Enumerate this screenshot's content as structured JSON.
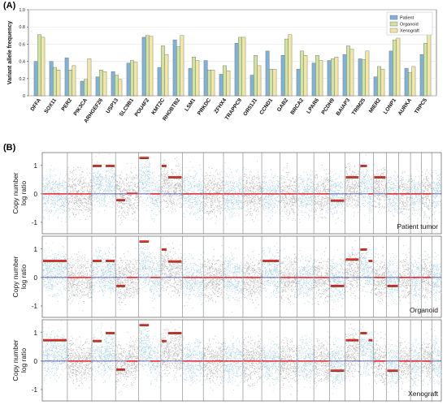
{
  "panel_labels": {
    "a": "(A)",
    "b": "(B)"
  },
  "chart_data": [
    {
      "type": "bar",
      "ylabel": "Variant allele frequency",
      "xlabel": "",
      "ylim": [
        0,
        1.0
      ],
      "yticks": [
        0,
        0.2,
        0.4,
        0.6,
        0.8,
        1.0
      ],
      "ytick_labels": [
        "0",
        "0.2",
        "0.4",
        "0.6",
        "0.8",
        "1.0"
      ],
      "legend_position": "top-right",
      "categories": [
        "DFFA",
        "SOX11",
        "PER2",
        "PIK3CA",
        "ARHGEF26",
        "USP13",
        "SLC9B1",
        "POU4F2",
        "KMT2C",
        "RHOBTB2",
        "LSM1",
        "PRKDC",
        "ZFHX4",
        "TRAPPC9",
        "OR51J1",
        "CCND1",
        "GAB2",
        "BRCA2",
        "LPAR6",
        "PCDH9",
        "BAIAP3",
        "TRIM25",
        "MIER2",
        "LONP1",
        "AURKA",
        "TRPC5"
      ],
      "series": [
        {
          "name": "Patient",
          "color": "#7fb2d9",
          "values": [
            0.4,
            0.4,
            0.44,
            0.17,
            0.22,
            0.28,
            0.38,
            0.68,
            0.33,
            0.65,
            0.32,
            0.41,
            0.25,
            0.61,
            0.24,
            0.52,
            0.47,
            0.31,
            0.38,
            0.41,
            0.48,
            0.43,
            0.22,
            0.52,
            0.32,
            0.48
          ]
        },
        {
          "name": "Organoid",
          "color": "#cfe3a2",
          "values": [
            0.71,
            0.33,
            0.3,
            0.19,
            0.3,
            0.24,
            0.41,
            0.7,
            0.58,
            0.57,
            0.45,
            0.3,
            0.35,
            0.68,
            0.47,
            0.31,
            0.66,
            0.52,
            0.47,
            0.43,
            0.58,
            0.42,
            0.34,
            0.65,
            0.27,
            0.61
          ]
        },
        {
          "name": "Xenograft",
          "color": "#f2e6a7",
          "values": [
            0.68,
            0.3,
            0.35,
            0.43,
            0.28,
            0.19,
            0.39,
            0.69,
            0.48,
            0.7,
            0.41,
            0.3,
            0.29,
            0.68,
            0.35,
            0.31,
            0.71,
            0.47,
            0.41,
            0.45,
            0.54,
            0.52,
            0.31,
            0.67,
            0.34,
            0.72
          ]
        }
      ]
    },
    {
      "type": "scatter",
      "subtitle": "Patient tumor",
      "ylabel": "Copy number log ratio",
      "ylim": [
        -1.4,
        1.45
      ],
      "yticks": [
        -1,
        0,
        1
      ],
      "ytick_labels": [
        "-1",
        "0",
        "1"
      ],
      "chromosome_count": 23,
      "segments": [
        {
          "chrom": 1,
          "from": 0.0,
          "to": 1.0,
          "value": 0.0
        },
        {
          "chrom": 2,
          "from": 0.0,
          "to": 1.0,
          "value": 0.0
        },
        {
          "chrom": 3,
          "from": 0.0,
          "to": 0.45,
          "value": 1.0
        },
        {
          "chrom": 3,
          "from": 0.55,
          "to": 1.0,
          "value": 1.0
        },
        {
          "chrom": 4,
          "from": 0.0,
          "to": 0.45,
          "value": -0.2
        },
        {
          "chrom": 4,
          "from": 0.45,
          "to": 1.0,
          "value": 0.02
        },
        {
          "chrom": 5,
          "from": 0.0,
          "to": 0.5,
          "value": 1.28
        },
        {
          "chrom": 5,
          "from": 0.5,
          "to": 1.0,
          "value": 0.0
        },
        {
          "chrom": 6,
          "from": 0.0,
          "to": 0.3,
          "value": 1.0
        },
        {
          "chrom": 6,
          "from": 0.3,
          "to": 1.0,
          "value": 0.6
        },
        {
          "chrom": 7,
          "from": 0.0,
          "to": 1.0,
          "value": 0.0
        },
        {
          "chrom": 8,
          "from": 0.0,
          "to": 1.0,
          "value": 0.0
        },
        {
          "chrom": 9,
          "from": 0.0,
          "to": 1.0,
          "value": 0.0
        },
        {
          "chrom": 10,
          "from": 0.0,
          "to": 1.0,
          "value": 0.0
        },
        {
          "chrom": 11,
          "from": 0.0,
          "to": 1.0,
          "value": 0.0
        },
        {
          "chrom": 12,
          "from": 0.0,
          "to": 1.0,
          "value": 0.0
        },
        {
          "chrom": 13,
          "from": 0.0,
          "to": 1.0,
          "value": 0.0
        },
        {
          "chrom": 14,
          "from": 0.0,
          "to": 1.0,
          "value": 0.0
        },
        {
          "chrom": 15,
          "from": 0.0,
          "to": 1.0,
          "value": -0.22
        },
        {
          "chrom": 16,
          "from": 0.0,
          "to": 1.0,
          "value": 0.6
        },
        {
          "chrom": 17,
          "from": 0.0,
          "to": 0.6,
          "value": 1.0
        },
        {
          "chrom": 17,
          "from": 0.6,
          "to": 1.0,
          "value": 0.0
        },
        {
          "chrom": 18,
          "from": 0.0,
          "to": 1.0,
          "value": 0.6
        },
        {
          "chrom": 19,
          "from": 0.0,
          "to": 1.0,
          "value": 0.0
        },
        {
          "chrom": 20,
          "from": 0.0,
          "to": 1.0,
          "value": 0.0
        },
        {
          "chrom": 21,
          "from": 0.0,
          "to": 1.0,
          "value": 0.0
        },
        {
          "chrom": 22,
          "from": 0.0,
          "to": 1.0,
          "value": 0.0
        }
      ]
    },
    {
      "type": "scatter",
      "subtitle": "Organoid",
      "ylabel": "Copy number log ratio",
      "ylim": [
        -1.4,
        1.45
      ],
      "yticks": [
        -1,
        0,
        1
      ],
      "ytick_labels": [
        "-1",
        "0",
        "1"
      ],
      "chromosome_count": 23,
      "segments": [
        {
          "chrom": 1,
          "from": 0.0,
          "to": 1.0,
          "value": 0.6
        },
        {
          "chrom": 2,
          "from": 0.0,
          "to": 1.0,
          "value": 0.0
        },
        {
          "chrom": 3,
          "from": 0.0,
          "to": 0.45,
          "value": 0.6
        },
        {
          "chrom": 3,
          "from": 0.55,
          "to": 1.0,
          "value": 0.6
        },
        {
          "chrom": 4,
          "from": 0.0,
          "to": 0.45,
          "value": -0.28
        },
        {
          "chrom": 4,
          "from": 0.45,
          "to": 1.0,
          "value": 0.0
        },
        {
          "chrom": 5,
          "from": 0.0,
          "to": 0.5,
          "value": 1.28
        },
        {
          "chrom": 5,
          "from": 0.5,
          "to": 1.0,
          "value": 0.0
        },
        {
          "chrom": 6,
          "from": 0.0,
          "to": 0.3,
          "value": 1.0
        },
        {
          "chrom": 6,
          "from": 0.3,
          "to": 1.0,
          "value": 0.58
        },
        {
          "chrom": 7,
          "from": 0.0,
          "to": 1.0,
          "value": 0.0
        },
        {
          "chrom": 8,
          "from": 0.0,
          "to": 1.0,
          "value": 0.0
        },
        {
          "chrom": 9,
          "from": 0.0,
          "to": 1.0,
          "value": 0.0
        },
        {
          "chrom": 10,
          "from": 0.0,
          "to": 1.0,
          "value": 0.0
        },
        {
          "chrom": 11,
          "from": 0.0,
          "to": 1.0,
          "value": 0.6
        },
        {
          "chrom": 12,
          "from": 0.0,
          "to": 1.0,
          "value": 0.0
        },
        {
          "chrom": 13,
          "from": 0.0,
          "to": 1.0,
          "value": 0.0
        },
        {
          "chrom": 14,
          "from": 0.0,
          "to": 1.0,
          "value": 0.0
        },
        {
          "chrom": 15,
          "from": 0.0,
          "to": 1.0,
          "value": -0.28
        },
        {
          "chrom": 16,
          "from": 0.0,
          "to": 1.0,
          "value": 0.65
        },
        {
          "chrom": 17,
          "from": 0.0,
          "to": 0.6,
          "value": 1.0
        },
        {
          "chrom": 17,
          "from": 0.6,
          "to": 1.0,
          "value": 0.6
        },
        {
          "chrom": 18,
          "from": 0.0,
          "to": 1.0,
          "value": 0.0
        },
        {
          "chrom": 19,
          "from": 0.0,
          "to": 1.0,
          "value": -0.28
        },
        {
          "chrom": 20,
          "from": 0.0,
          "to": 1.0,
          "value": 0.0
        },
        {
          "chrom": 21,
          "from": 0.0,
          "to": 1.0,
          "value": 0.0
        },
        {
          "chrom": 22,
          "from": 0.0,
          "to": 1.0,
          "value": 0.0
        }
      ]
    },
    {
      "type": "scatter",
      "subtitle": "Xenograft",
      "ylabel": "Copy number log ratio",
      "ylim": [
        -1.4,
        1.45
      ],
      "yticks": [
        -1,
        0,
        1
      ],
      "ytick_labels": [
        "-1",
        "0",
        "1"
      ],
      "chromosome_count": 23,
      "segments": [
        {
          "chrom": 1,
          "from": 0.0,
          "to": 1.0,
          "value": 0.75
        },
        {
          "chrom": 2,
          "from": 0.0,
          "to": 1.0,
          "value": 0.0
        },
        {
          "chrom": 3,
          "from": 0.0,
          "to": 0.45,
          "value": 0.72
        },
        {
          "chrom": 3,
          "from": 0.55,
          "to": 1.0,
          "value": 1.0
        },
        {
          "chrom": 4,
          "from": 0.0,
          "to": 0.45,
          "value": -0.28
        },
        {
          "chrom": 4,
          "from": 0.45,
          "to": 1.0,
          "value": 0.0
        },
        {
          "chrom": 5,
          "from": 0.0,
          "to": 0.5,
          "value": 1.28
        },
        {
          "chrom": 5,
          "from": 0.5,
          "to": 1.0,
          "value": 0.0
        },
        {
          "chrom": 6,
          "from": 0.0,
          "to": 0.3,
          "value": 0.72
        },
        {
          "chrom": 6,
          "from": 0.3,
          "to": 1.0,
          "value": 1.0
        },
        {
          "chrom": 7,
          "from": 0.0,
          "to": 1.0,
          "value": 0.0
        },
        {
          "chrom": 8,
          "from": 0.0,
          "to": 1.0,
          "value": 0.0
        },
        {
          "chrom": 9,
          "from": 0.0,
          "to": 1.0,
          "value": 0.0
        },
        {
          "chrom": 10,
          "from": 0.0,
          "to": 1.0,
          "value": 0.0
        },
        {
          "chrom": 11,
          "from": 0.0,
          "to": 1.0,
          "value": 0.0
        },
        {
          "chrom": 12,
          "from": 0.0,
          "to": 1.0,
          "value": 0.0
        },
        {
          "chrom": 13,
          "from": 0.0,
          "to": 1.0,
          "value": 0.0
        },
        {
          "chrom": 14,
          "from": 0.0,
          "to": 1.0,
          "value": 0.0
        },
        {
          "chrom": 15,
          "from": 0.0,
          "to": 1.0,
          "value": -0.32
        },
        {
          "chrom": 16,
          "from": 0.0,
          "to": 1.0,
          "value": 0.75
        },
        {
          "chrom": 17,
          "from": 0.0,
          "to": 0.6,
          "value": 1.0
        },
        {
          "chrom": 17,
          "from": 0.6,
          "to": 1.0,
          "value": 0.75
        },
        {
          "chrom": 18,
          "from": 0.0,
          "to": 1.0,
          "value": 0.0
        },
        {
          "chrom": 19,
          "from": 0.0,
          "to": 1.0,
          "value": -0.32
        },
        {
          "chrom": 20,
          "from": 0.0,
          "to": 1.0,
          "value": 0.0
        },
        {
          "chrom": 21,
          "from": 0.0,
          "to": 1.0,
          "value": 0.0
        },
        {
          "chrom": 22,
          "from": 0.0,
          "to": 1.0,
          "value": 0.0
        }
      ]
    }
  ],
  "colors": {
    "scatter_odd": "#a9d3e6",
    "scatter_even": "#b7b7b7",
    "segment_main": "#e8232a",
    "segment_shadow": "#7a3a12",
    "zero_line": "#3a2a8a"
  }
}
